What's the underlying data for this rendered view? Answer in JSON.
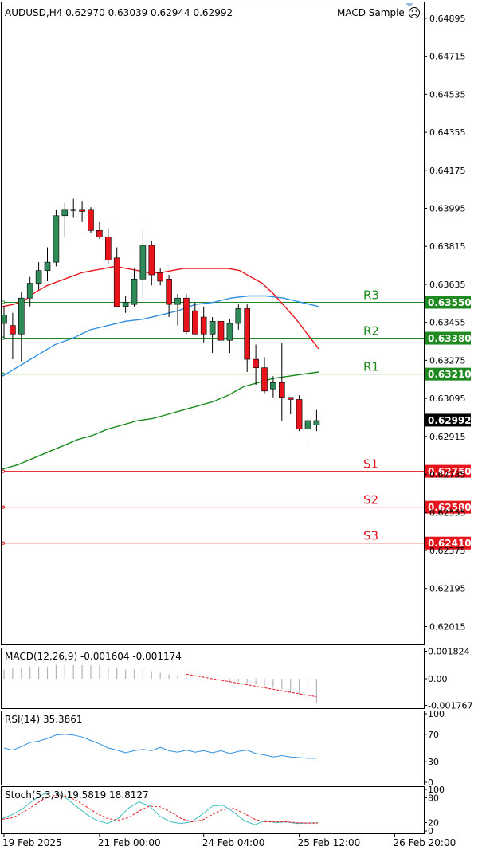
{
  "header": {
    "symbol_info": "AUDUSD,H4  0.62970 0.63039 0.62944 0.62992",
    "indicator_name": "MACD Sample"
  },
  "colors": {
    "bull": "#2e8b57",
    "bear": "#e8141b",
    "resistance": "#1f8a1f",
    "support": "#e8141b",
    "ma_fast": "#e8141b",
    "ma_mid": "#2f8fe0",
    "ma_slow": "#1a8a1a",
    "macd_hist": "#b4b4b4",
    "macd_signal": "#e8141b",
    "rsi": "#2f8fe0",
    "stoch_main": "#3fbfbf",
    "stoch_signal": "#e8141b",
    "current_price_bg": "#000000"
  },
  "chart_data": {
    "type": "candlestick",
    "price_axis": {
      "ylim": [
        0.6193,
        0.6497
      ],
      "ticks": [
        "0.64895",
        "0.64715",
        "0.64535",
        "0.64355",
        "0.64175",
        "0.63995",
        "0.63815",
        "0.63635",
        "0.63455",
        "0.63275",
        "0.63095",
        "0.62915",
        "0.62735",
        "0.62555",
        "0.62375",
        "0.62195",
        "0.62015"
      ],
      "current_price": "0.62992"
    },
    "time_axis": {
      "labels": [
        "19 Feb 2025",
        "21 Feb 00:00",
        "24 Feb 04:00",
        "25 Feb 12:00",
        "26 Feb 20:00"
      ],
      "label_candle_index": [
        0,
        11,
        23,
        34,
        45
      ]
    },
    "candles": [
      {
        "o": 0.6345,
        "h": 0.6353,
        "l": 0.6338,
        "c": 0.6349
      },
      {
        "o": 0.6344,
        "h": 0.635,
        "l": 0.6328,
        "c": 0.634
      },
      {
        "o": 0.634,
        "h": 0.636,
        "l": 0.6327,
        "c": 0.6357
      },
      {
        "o": 0.6357,
        "h": 0.6367,
        "l": 0.6353,
        "c": 0.6364
      },
      {
        "o": 0.6364,
        "h": 0.6374,
        "l": 0.6361,
        "c": 0.637
      },
      {
        "o": 0.637,
        "h": 0.6381,
        "l": 0.6365,
        "c": 0.6374
      },
      {
        "o": 0.6374,
        "h": 0.6399,
        "l": 0.6372,
        "c": 0.6396
      },
      {
        "o": 0.6396,
        "h": 0.6402,
        "l": 0.6386,
        "c": 0.6399
      },
      {
        "o": 0.6399,
        "h": 0.6404,
        "l": 0.6395,
        "c": 0.6399
      },
      {
        "o": 0.6399,
        "h": 0.6403,
        "l": 0.6393,
        "c": 0.6398
      },
      {
        "o": 0.6399,
        "h": 0.64,
        "l": 0.6388,
        "c": 0.6389
      },
      {
        "o": 0.6389,
        "h": 0.6393,
        "l": 0.6385,
        "c": 0.6386
      },
      {
        "o": 0.6386,
        "h": 0.639,
        "l": 0.6373,
        "c": 0.6375
      },
      {
        "o": 0.6376,
        "h": 0.6381,
        "l": 0.6353,
        "c": 0.6353
      },
      {
        "o": 0.6353,
        "h": 0.6358,
        "l": 0.635,
        "c": 0.6355
      },
      {
        "o": 0.6354,
        "h": 0.6371,
        "l": 0.6353,
        "c": 0.6366
      },
      {
        "o": 0.6366,
        "h": 0.639,
        "l": 0.6356,
        "c": 0.6382
      },
      {
        "o": 0.6382,
        "h": 0.6384,
        "l": 0.6363,
        "c": 0.6368
      },
      {
        "o": 0.6369,
        "h": 0.6371,
        "l": 0.6363,
        "c": 0.6365
      },
      {
        "o": 0.6366,
        "h": 0.6368,
        "l": 0.6348,
        "c": 0.6354
      },
      {
        "o": 0.6354,
        "h": 0.6359,
        "l": 0.6344,
        "c": 0.6357
      },
      {
        "o": 0.6357,
        "h": 0.6359,
        "l": 0.634,
        "c": 0.6341
      },
      {
        "o": 0.6351,
        "h": 0.6355,
        "l": 0.634,
        "c": 0.634
      },
      {
        "o": 0.6348,
        "h": 0.6353,
        "l": 0.6336,
        "c": 0.634
      },
      {
        "o": 0.634,
        "h": 0.6348,
        "l": 0.6331,
        "c": 0.6346
      },
      {
        "o": 0.6346,
        "h": 0.6353,
        "l": 0.6332,
        "c": 0.6337
      },
      {
        "o": 0.6337,
        "h": 0.6347,
        "l": 0.6331,
        "c": 0.6345
      },
      {
        "o": 0.6345,
        "h": 0.6354,
        "l": 0.6342,
        "c": 0.6352
      },
      {
        "o": 0.6352,
        "h": 0.6354,
        "l": 0.6322,
        "c": 0.6328
      },
      {
        "o": 0.6328,
        "h": 0.6335,
        "l": 0.6316,
        "c": 0.6324
      },
      {
        "o": 0.6324,
        "h": 0.6329,
        "l": 0.6312,
        "c": 0.6313
      },
      {
        "o": 0.6314,
        "h": 0.632,
        "l": 0.631,
        "c": 0.6317
      },
      {
        "o": 0.6317,
        "h": 0.6336,
        "l": 0.6299,
        "c": 0.631
      },
      {
        "o": 0.631,
        "h": 0.6309,
        "l": 0.6302,
        "c": 0.6309
      },
      {
        "o": 0.6309,
        "h": 0.6311,
        "l": 0.6294,
        "c": 0.6295
      },
      {
        "o": 0.6295,
        "h": 0.63,
        "l": 0.6288,
        "c": 0.6299
      },
      {
        "o": 0.6297,
        "h": 0.6304,
        "l": 0.6294,
        "c": 0.6299
      }
    ],
    "levels": [
      {
        "name": "R3",
        "value": "0.63550",
        "kind": "resistance"
      },
      {
        "name": "R2",
        "value": "0.63380",
        "kind": "resistance"
      },
      {
        "name": "R1",
        "value": "0.63210",
        "kind": "resistance"
      },
      {
        "name": "S1",
        "value": "0.62750",
        "kind": "support"
      },
      {
        "name": "S2",
        "value": "0.62580",
        "kind": "support"
      },
      {
        "name": "S3",
        "value": "0.62410",
        "kind": "support"
      }
    ],
    "ma_fast": [
      0.6353,
      0.6354,
      0.6356,
      0.636,
      0.6363,
      0.6365,
      0.6367,
      0.6369,
      0.637,
      0.6371,
      0.6372,
      0.6371,
      0.637,
      0.6369,
      0.6369,
      0.637,
      0.6371,
      0.6371,
      0.6371,
      0.6371,
      0.6371,
      0.637,
      0.6367,
      0.6364,
      0.6359,
      0.6353,
      0.6347,
      0.634,
      0.6333
    ],
    "ma_mid": [
      0.632,
      0.6325,
      0.633,
      0.6335,
      0.6338,
      0.6342,
      0.6344,
      0.6346,
      0.6347,
      0.6349,
      0.6351,
      0.6354,
      0.6355,
      0.6357,
      0.6358,
      0.6358,
      0.6357,
      0.6355,
      0.6353
    ],
    "ma_slow": [
      0.6276,
      0.6278,
      0.6281,
      0.6284,
      0.6287,
      0.629,
      0.6292,
      0.6295,
      0.6297,
      0.6299,
      0.63,
      0.6302,
      0.6304,
      0.6306,
      0.6308,
      0.6311,
      0.6315,
      0.6317,
      0.6319,
      0.632,
      0.6321,
      0.6322
    ],
    "macd": {
      "label": "MACD(12,26,9) -0.001604 -0.001174",
      "ticks": [
        "0.001824",
        "0.00",
        "-0.001767"
      ],
      "ylim": [
        -0.0019,
        0.0019
      ],
      "hist": [
        0.0006,
        0.0007,
        0.0007,
        0.0008,
        0.0008,
        0.0008,
        0.0009,
        0.0009,
        0.0009,
        0.0009,
        0.0009,
        0.0009,
        0.0008,
        0.0007,
        0.0006,
        0.0006,
        0.0006,
        0.0005,
        0.0004,
        0.0003,
        0.0002,
        0.0001,
        0.0,
        0.0,
        -0.0001,
        -0.0001,
        -0.0002,
        -0.0002,
        -0.0003,
        -0.0004,
        -0.0005,
        -0.0006,
        -0.0007,
        -0.0009,
        -0.0011,
        -0.0013,
        -0.0016
      ],
      "signal": [
        0.0003,
        0.0002,
        0.0001,
        0.0,
        -0.0001,
        -0.0002,
        -0.0003,
        -0.0004,
        -0.0005,
        -0.0006,
        -0.0007,
        -0.0008,
        -0.0009,
        -0.001,
        -0.0011,
        -0.0012
      ],
      "signal_start_index": 21
    },
    "rsi": {
      "label": "RSI(14) 35.3861",
      "ticks": [
        "100",
        "70",
        "30",
        "0"
      ],
      "ylim": [
        0,
        100
      ],
      "values": [
        50,
        47,
        52,
        58,
        60,
        64,
        69,
        70,
        69,
        66,
        61,
        56,
        50,
        47,
        43,
        46,
        48,
        46,
        51,
        46,
        44,
        47,
        44,
        46,
        43,
        46,
        42,
        45,
        47,
        42,
        40,
        37,
        39,
        37,
        36,
        35,
        35
      ]
    },
    "stoch": {
      "label": "Stoch(5,3,3) 19.5819 18.8127",
      "ticks": [
        "100",
        "80",
        "20",
        "0"
      ],
      "ylim": [
        0,
        100
      ],
      "main": [
        30,
        40,
        55,
        75,
        90,
        92,
        80,
        60,
        40,
        25,
        18,
        30,
        55,
        70,
        60,
        35,
        22,
        18,
        22,
        40,
        60,
        62,
        45,
        25,
        15,
        25,
        20,
        22,
        18,
        19,
        20
      ],
      "signal": [
        28,
        32,
        45,
        62,
        78,
        86,
        84,
        74,
        58,
        42,
        30,
        26,
        32,
        48,
        60,
        58,
        46,
        30,
        22,
        26,
        40,
        52,
        54,
        42,
        28,
        22,
        22,
        22,
        20,
        19,
        19
      ]
    }
  }
}
